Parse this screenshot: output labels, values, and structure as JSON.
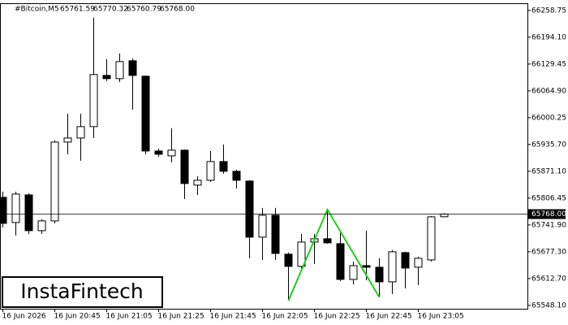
{
  "chart_data": {
    "type": "candlestick",
    "header": {
      "symbol": "#Bitcoin,M5",
      "ohlc": [
        "65761.59",
        "65770.32",
        "65760.79",
        "65768.00"
      ]
    },
    "logo": "InstaFintech",
    "categories": [
      "16 Jun 2026",
      null,
      null,
      null,
      "16 Jun 20:45",
      null,
      null,
      null,
      "16 Jun 21:05",
      null,
      null,
      null,
      "16 Jun 21:25",
      null,
      null,
      null,
      "16 Jun 21:45",
      null,
      null,
      null,
      "16 Jun 22:05",
      null,
      null,
      null,
      "16 Jun 22:25",
      null,
      null,
      null,
      "16 Jun 22:45",
      null,
      null,
      null,
      "16 Jun 23:05",
      null,
      null
    ],
    "open": [
      65808.4,
      65747.7,
      65814.3,
      65728.1,
      65751.6,
      65941.5,
      65951.3,
      65978.8,
      66102.1,
      66094.3,
      66137.4,
      66100.2,
      65920.0,
      65908.3,
      65922.0,
      65837.8,
      65849.5,
      65894.6,
      65871.1,
      65847.6,
      65712.5,
      65765.3,
      65671.4,
      65642.1,
      65700.7,
      65708.6,
      65696.8,
      65610.7,
      65643.9,
      65640.0,
      65604.8,
      65675.3,
      65640.0,
      65657.6,
      65761.59
    ],
    "high": [
      65822.1,
      65822.1,
      65818.2,
      65755.5,
      65945.5,
      66010.1,
      66010.1,
      66241.1,
      66141.3,
      66155.0,
      66143.2,
      66102.1,
      65925.9,
      65974.9,
      65924.0,
      65859.3,
      65920.0,
      65935.7,
      65875.0,
      65849.5,
      65782.9,
      65782.9,
      65675.3,
      65720.3,
      65720.3,
      65779.0,
      65724.2,
      65653.7,
      65728.1,
      65661.5,
      65681.1,
      65677.2,
      65665.5,
      65763.4,
      65770.32
    ],
    "low": [
      65736.0,
      65716.4,
      65720.3,
      65720.3,
      65745.7,
      65912.2,
      65896.5,
      65951.3,
      66088.4,
      66086.4,
      66019.9,
      65912.2,
      65906.3,
      65892.6,
      65804.5,
      65814.3,
      65845.6,
      65865.2,
      65829.9,
      65661.5,
      65657.6,
      65657.6,
      65559.7,
      65636.1,
      65647.9,
      65696.8,
      65606.7,
      65598.9,
      65608.7,
      65567.6,
      65575.4,
      65589.1,
      65596.9,
      65653.7,
      65760.79
    ],
    "close": [
      65745.7,
      65816.2,
      65728.1,
      65751.6,
      65941.5,
      65951.3,
      65978.8,
      66104.1,
      66094.3,
      66135.4,
      66102.1,
      65920.0,
      65912.2,
      65922.0,
      65841.7,
      65849.5,
      65894.6,
      65871.1,
      65849.5,
      65712.5,
      65765.3,
      65673.3,
      65642.1,
      65700.7,
      65708.6,
      65698.8,
      65610.7,
      65643.9,
      65640.0,
      65604.8,
      65677.2,
      65638.0,
      65661.5,
      65761.4,
      65768.0
    ],
    "ylim": [
      65540,
      66274
    ],
    "yticks": [
      66258.75,
      {
        "value": 66194.1,
        "label": "66194.10"
      },
      66129.45,
      {
        "value": 66064.9,
        "label": "66064.90"
      },
      66000.25,
      {
        "value": 65935.7,
        "label": "65935.70"
      },
      {
        "value": 65871.1,
        "label": "65871.10"
      },
      65806.45,
      {
        "value": 65741.9,
        "label": "65741.90"
      },
      {
        "value": 65677.3,
        "label": "65677.30"
      },
      {
        "value": 65612.7,
        "label": "65612.70"
      },
      {
        "value": 65548.1,
        "label": "65548.10"
      }
    ],
    "price_line": {
      "value": 65768,
      "label": "65768.00"
    },
    "up_color": "#ffffff",
    "down_color": "#000000",
    "pattern_color": "#22cc22"
  }
}
